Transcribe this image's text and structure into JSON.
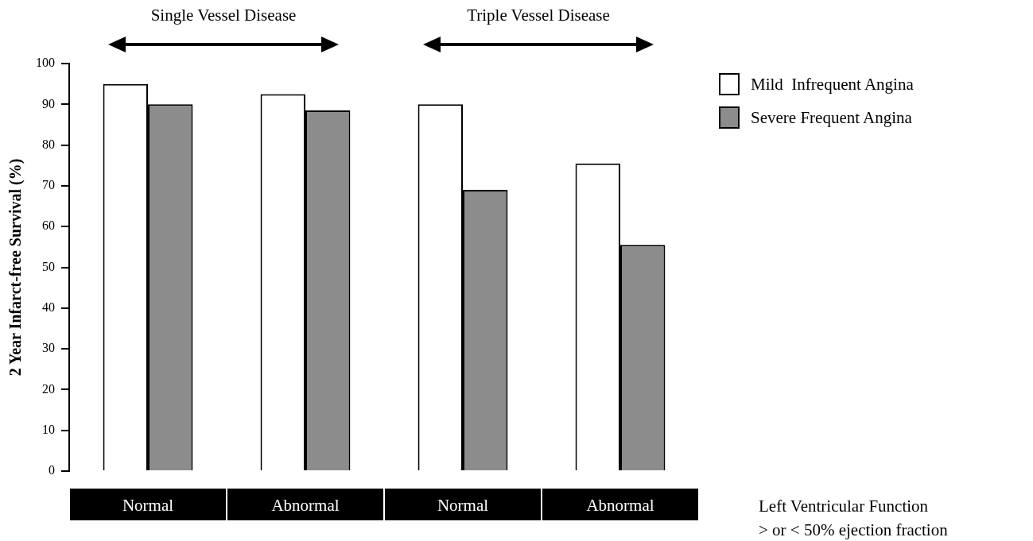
{
  "chart_data": {
    "type": "bar",
    "categories": [
      "Normal",
      "Abnormal",
      "Normal",
      "Abnormal"
    ],
    "series": [
      {
        "name": "Mild  Infrequent Angina",
        "color": "#ffffff",
        "values": [
          95,
          92.5,
          90,
          75.5
        ]
      },
      {
        "name": "Severe Frequent Angina",
        "color": "#8c8c8c",
        "values": [
          90,
          88.5,
          69,
          55.5
        ]
      }
    ],
    "ylabel": "2 Year Infarct-free Survival (%)",
    "xlabel": "Left Ventricular Function\n> or < 50% ejection fraction",
    "annotations": [
      "Single Vessel Disease",
      "Triple Vessel Disease"
    ],
    "ylim": [
      0,
      100
    ],
    "yticks": [
      0,
      10,
      20,
      30,
      40,
      50,
      60,
      70,
      80,
      90,
      100
    ],
    "grid": false,
    "legend": "right"
  }
}
